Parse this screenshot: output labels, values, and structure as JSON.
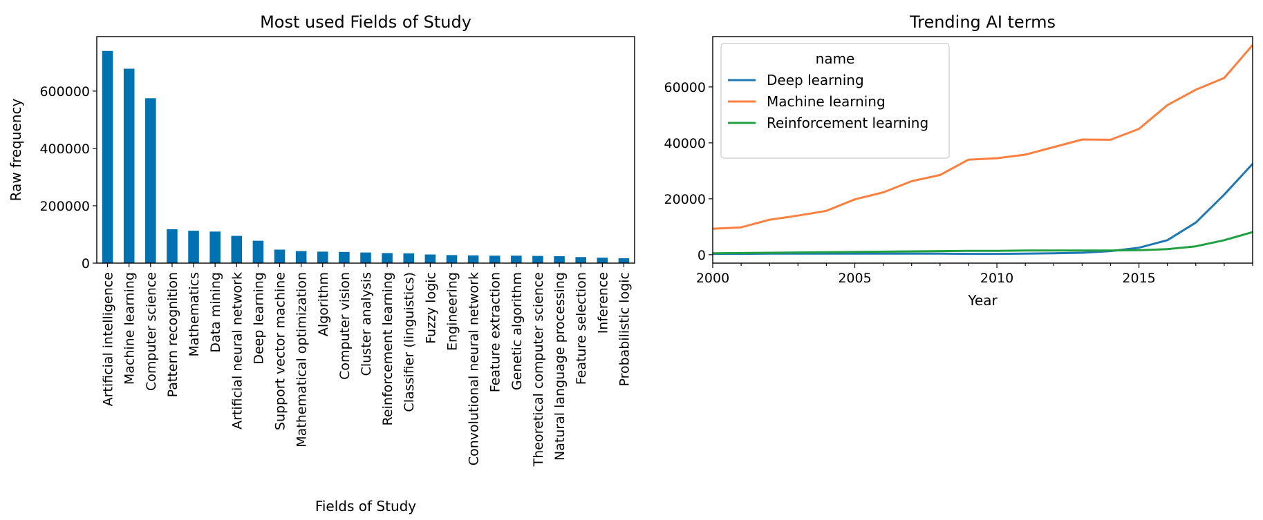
{
  "chart_data": [
    {
      "type": "bar",
      "title": "Most used Fields of Study",
      "xlabel": "Fields of Study",
      "ylabel": "Raw frequency",
      "ylim": [
        0,
        790000
      ],
      "yticks": [
        0,
        200000,
        400000,
        600000
      ],
      "ytick_labels": [
        "0",
        "200000",
        "400000",
        "600000"
      ],
      "bar_color": "#0072b2",
      "grid": false,
      "categories": [
        "Artificial intelligence",
        "Machine learning",
        "Computer science",
        "Pattern recognition",
        "Mathematics",
        "Data mining",
        "Artificial neural network",
        "Deep learning",
        "Support vector machine",
        "Mathematical optimization",
        "Algorithm",
        "Computer vision",
        "Cluster analysis",
        "Reinforcement learning",
        "Classifier (linguistics)",
        "Fuzzy logic",
        "Engineering",
        "Convolutional neural network",
        "Feature extraction",
        "Genetic algorithm",
        "Theoretical computer science",
        "Natural language processing",
        "Feature selection",
        "Inference",
        "Probabilistic logic"
      ],
      "values": [
        740000,
        678000,
        575000,
        118000,
        113000,
        110000,
        95000,
        78000,
        47000,
        42000,
        40000,
        39000,
        37000,
        35000,
        34000,
        30000,
        28000,
        27000,
        26000,
        26000,
        25000,
        24000,
        21000,
        19000,
        17000
      ]
    },
    {
      "type": "line",
      "title": "Trending AI terms",
      "xlabel": "Year",
      "ylabel": "",
      "xlim": [
        2000,
        2019
      ],
      "ylim": [
        -3000,
        78000
      ],
      "xticks": [
        2000,
        2005,
        2010,
        2015
      ],
      "xtick_labels": [
        "2000",
        "2005",
        "2010",
        "2015"
      ],
      "yticks": [
        0,
        20000,
        40000,
        60000
      ],
      "ytick_labels": [
        "0",
        "20000",
        "40000",
        "60000"
      ],
      "grid": false,
      "legend": {
        "title": "name",
        "placement": "top-left"
      },
      "x": [
        2000,
        2001,
        2002,
        2003,
        2004,
        2005,
        2006,
        2007,
        2008,
        2009,
        2010,
        2011,
        2012,
        2013,
        2014,
        2015,
        2016,
        2017,
        2018,
        2019
      ],
      "series": [
        {
          "name": "Deep learning",
          "color": "#1f77b4",
          "values": [
            300,
            300,
            400,
            400,
            400,
            400,
            400,
            400,
            400,
            300,
            300,
            400,
            500,
            700,
            1300,
            2500,
            5200,
            11500,
            21500,
            32500
          ]
        },
        {
          "name": "Machine learning",
          "color": "#ff7f3f",
          "values": [
            9300,
            9800,
            12500,
            14000,
            15700,
            19800,
            22300,
            26300,
            28500,
            34000,
            34500,
            35800,
            38500,
            41200,
            41100,
            45000,
            53500,
            59000,
            63200,
            75000
          ]
        },
        {
          "name": "Reinforcement learning",
          "color": "#20a040",
          "values": [
            500,
            600,
            700,
            800,
            900,
            1000,
            1100,
            1200,
            1300,
            1400,
            1400,
            1500,
            1500,
            1500,
            1500,
            1600,
            2000,
            3000,
            5200,
            8100
          ]
        }
      ]
    }
  ]
}
